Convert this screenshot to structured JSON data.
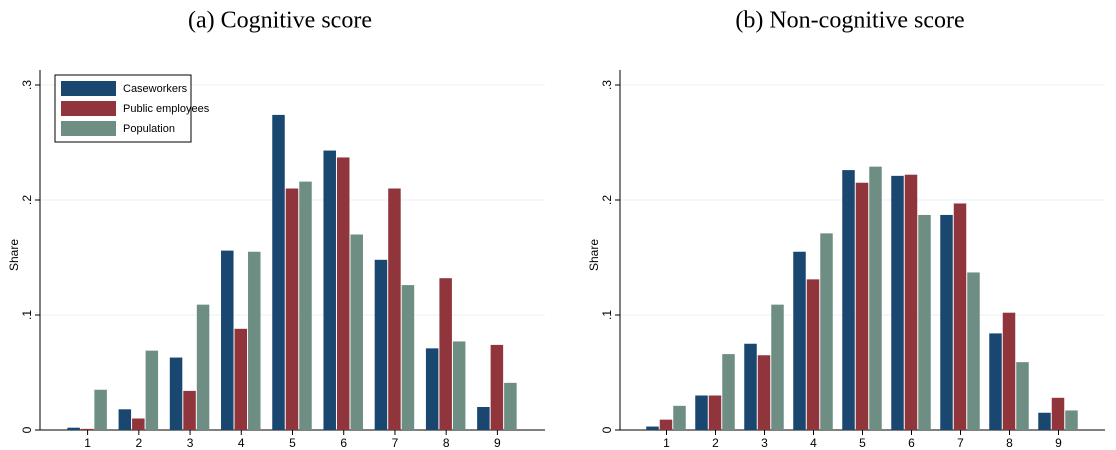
{
  "chart_data": [
    {
      "type": "bar",
      "title": "(a) Cognitive score",
      "ylabel": "Share",
      "categories": [
        "1",
        "2",
        "3",
        "4",
        "5",
        "6",
        "7",
        "8",
        "9"
      ],
      "series": [
        {
          "name": "Caseworkers",
          "color": "#1a476f",
          "values": [
            0.002,
            0.018,
            0.063,
            0.156,
            0.274,
            0.243,
            0.148,
            0.071,
            0.02
          ]
        },
        {
          "name": "Public employees",
          "color": "#90353b",
          "values": [
            0.001,
            0.01,
            0.034,
            0.088,
            0.21,
            0.237,
            0.21,
            0.132,
            0.074
          ]
        },
        {
          "name": "Population",
          "color": "#6e8e84",
          "values": [
            0.035,
            0.069,
            0.109,
            0.155,
            0.216,
            0.17,
            0.126,
            0.077,
            0.041
          ]
        }
      ],
      "ylim": [
        0,
        0.3
      ],
      "yticks": [
        0,
        {
          "value": 0.1,
          "label": ".1"
        },
        {
          "value": 0.2,
          "label": ".2"
        },
        {
          "value": 0.3,
          "label": ".3"
        }
      ],
      "grid": true,
      "legend": "top-left"
    },
    {
      "type": "bar",
      "title": "(b) Non-cognitive score",
      "ylabel": "Share",
      "categories": [
        "1",
        "2",
        "3",
        "4",
        "5",
        "6",
        "7",
        "8",
        "9"
      ],
      "series": [
        {
          "color": "#1a476f",
          "values": [
            0.003,
            0.03,
            0.075,
            0.155,
            0.226,
            0.221,
            0.187,
            0.084,
            0.015
          ]
        },
        {
          "color": "#90353b",
          "values": [
            0.009,
            0.03,
            0.065,
            0.131,
            0.215,
            0.222,
            0.197,
            0.102,
            0.028
          ]
        },
        {
          "color": "#6e8e84",
          "values": [
            0.021,
            0.066,
            0.109,
            0.171,
            0.229,
            0.187,
            0.137,
            0.059,
            0.017
          ]
        }
      ],
      "ylim": [
        0,
        0.3
      ],
      "yticks": [
        0,
        {
          "value": 0.1,
          "label": ".1"
        },
        {
          "value": 0.2,
          "label": ".2"
        },
        {
          "value": 0.3,
          "label": ".3"
        }
      ],
      "grid": true,
      "legend": "none"
    }
  ]
}
